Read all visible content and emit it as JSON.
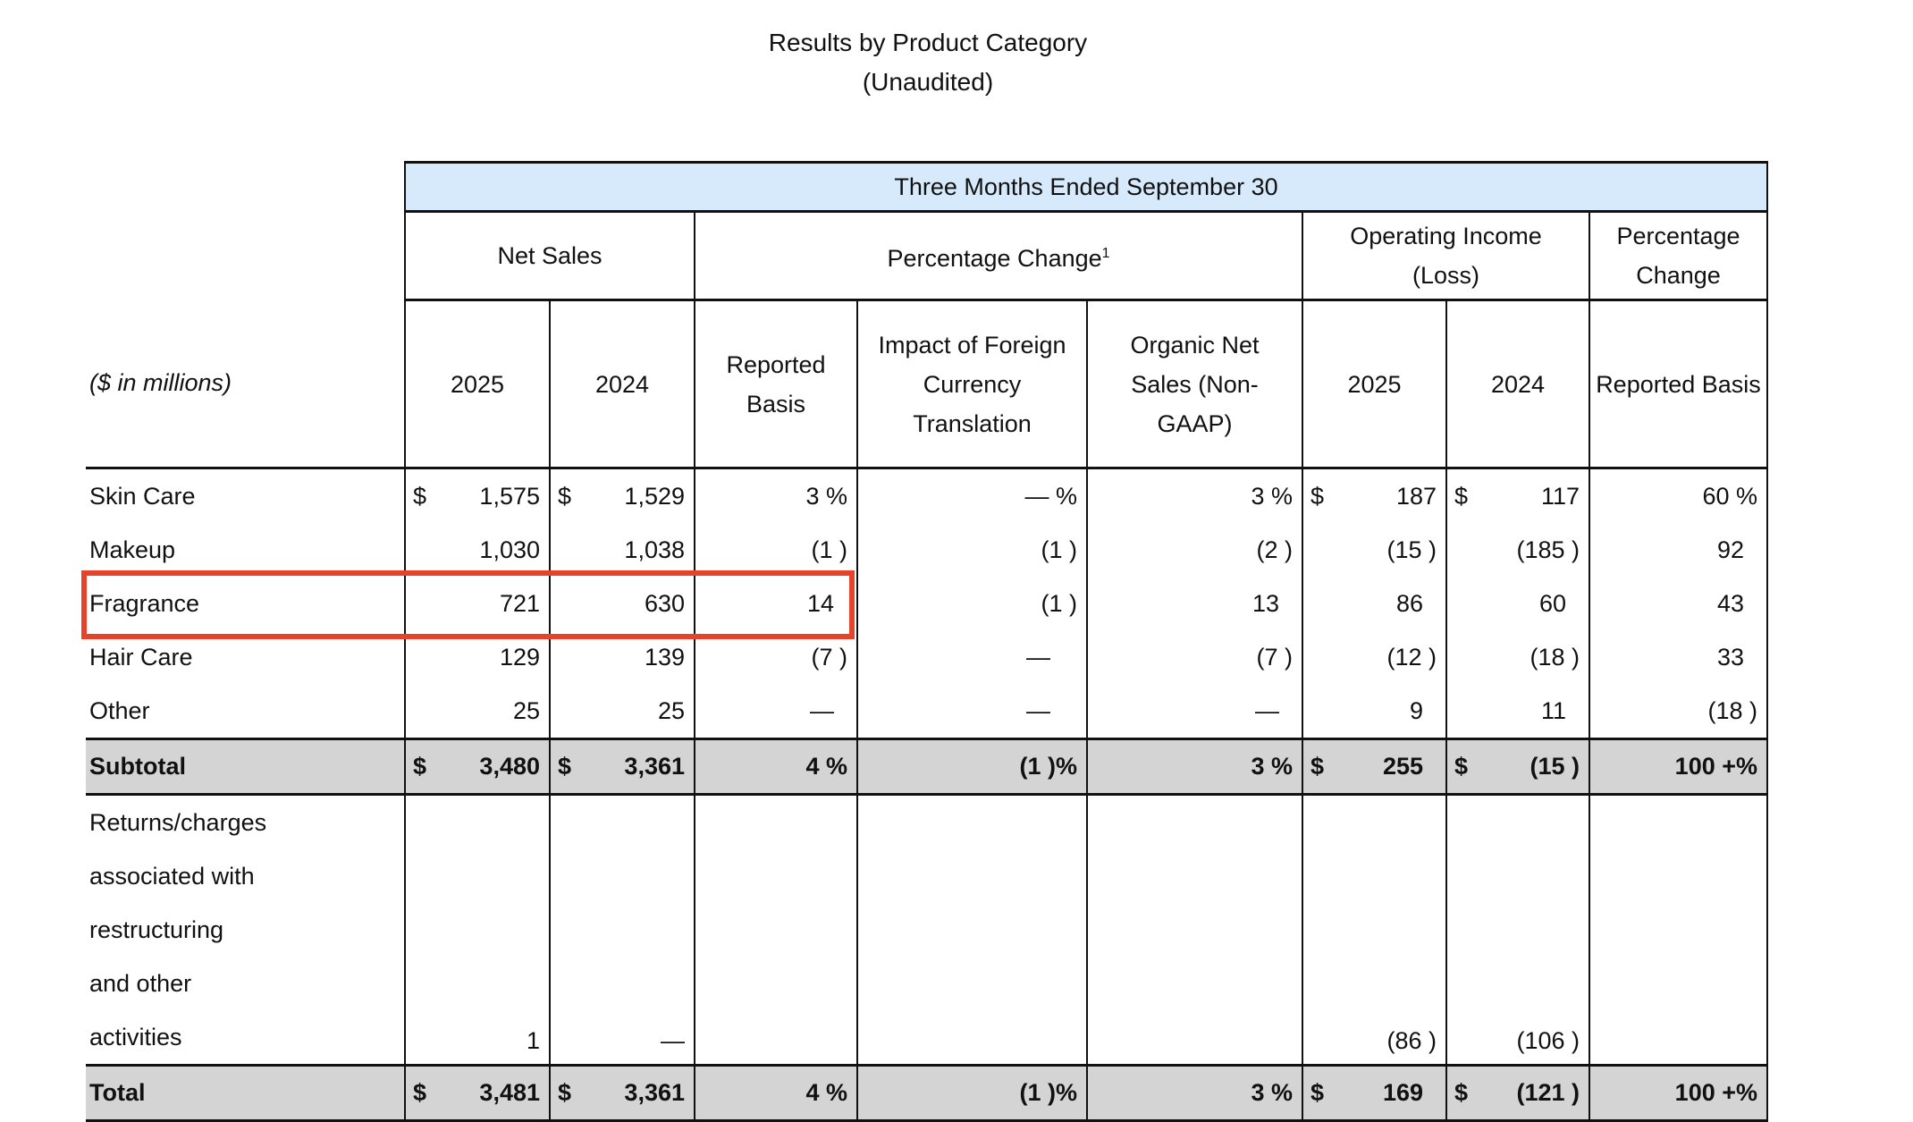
{
  "title": "Results by Product Category",
  "subtitle": "(Unaudited)",
  "header": {
    "period": "Three Months Ended September 30",
    "net_sales": "Net Sales",
    "pct_change": "Percentage Change",
    "pct_change_sup": "1",
    "op_income": "Operating Income (Loss)",
    "pct_change2": "Percentage Change",
    "units": "($ in millions)",
    "cols": [
      "2025",
      "2024",
      "Reported Basis",
      "Impact of Foreign Currency Translation",
      "Organic Net Sales (Non-GAAP)",
      "2025",
      "2024",
      "Reported Basis"
    ]
  },
  "rows": [
    {
      "label": "Skin Care",
      "type": "d",
      "cells": [
        {
          "cur": "$",
          "val": "1,575"
        },
        {
          "cur": "$",
          "val": "1,529"
        },
        {
          "cur": "",
          "val": "3 %"
        },
        {
          "cur": "",
          "val": "— %"
        },
        {
          "cur": "",
          "val": "3 %"
        },
        {
          "cur": "$",
          "val": "187"
        },
        {
          "cur": "$",
          "val": "117"
        },
        {
          "cur": "",
          "val": "60 %"
        }
      ]
    },
    {
      "label": "Makeup",
      "type": "d",
      "cells": [
        {
          "cur": "",
          "val": "1,030"
        },
        {
          "cur": "",
          "val": "1,038"
        },
        {
          "cur": "",
          "val": "(1 )"
        },
        {
          "cur": "",
          "val": "(1 )"
        },
        {
          "cur": "",
          "val": "(2 )"
        },
        {
          "cur": "",
          "val": "(15 )"
        },
        {
          "cur": "",
          "val": "(185 )"
        },
        {
          "cur": "",
          "val": "92  "
        }
      ]
    },
    {
      "label": "Fragrance",
      "type": "d",
      "cells": [
        {
          "cur": "",
          "val": "721"
        },
        {
          "cur": "",
          "val": "630"
        },
        {
          "cur": "",
          "val": "14  "
        },
        {
          "cur": "",
          "val": "(1 )"
        },
        {
          "cur": "",
          "val": "13  "
        },
        {
          "cur": "",
          "val": "86  "
        },
        {
          "cur": "",
          "val": "60  "
        },
        {
          "cur": "",
          "val": "43  "
        }
      ]
    },
    {
      "label": "Hair Care",
      "type": "d",
      "cells": [
        {
          "cur": "",
          "val": "129"
        },
        {
          "cur": "",
          "val": "139"
        },
        {
          "cur": "",
          "val": "(7 )"
        },
        {
          "cur": "",
          "val": "—    "
        },
        {
          "cur": "",
          "val": "(7 )"
        },
        {
          "cur": "",
          "val": "(12 )"
        },
        {
          "cur": "",
          "val": "(18 )"
        },
        {
          "cur": "",
          "val": "33  "
        }
      ]
    },
    {
      "label": "Other",
      "type": "d",
      "cells": [
        {
          "cur": "",
          "val": "25"
        },
        {
          "cur": "",
          "val": "25"
        },
        {
          "cur": "",
          "val": "—  "
        },
        {
          "cur": "",
          "val": "—    "
        },
        {
          "cur": "",
          "val": "—  "
        },
        {
          "cur": "",
          "val": "9  "
        },
        {
          "cur": "",
          "val": "11  "
        },
        {
          "cur": "",
          "val": "(18 )"
        }
      ]
    },
    {
      "label": "Subtotal",
      "type": "sub",
      "cells": [
        {
          "cur": "$",
          "val": "3,480"
        },
        {
          "cur": "$",
          "val": "3,361"
        },
        {
          "cur": "",
          "val": "4 %"
        },
        {
          "cur": "",
          "val": "(1 )%"
        },
        {
          "cur": "",
          "val": "3 %"
        },
        {
          "cur": "$",
          "val": "255  "
        },
        {
          "cur": "$",
          "val": "(15 )"
        },
        {
          "cur": "",
          "val": "100 +%"
        }
      ]
    },
    {
      "label": "Returns/charges associated with restructuring and other activities",
      "type": "ret",
      "cells": [
        {
          "cur": "",
          "val": "1"
        },
        {
          "cur": "",
          "val": "—"
        },
        {
          "cur": "",
          "val": ""
        },
        {
          "cur": "",
          "val": ""
        },
        {
          "cur": "",
          "val": ""
        },
        {
          "cur": "",
          "val": "(86 )"
        },
        {
          "cur": "",
          "val": "(106 )"
        },
        {
          "cur": "",
          "val": ""
        }
      ]
    },
    {
      "label": "Total",
      "type": "tot",
      "cells": [
        {
          "cur": "$",
          "val": "3,481"
        },
        {
          "cur": "$",
          "val": "3,361"
        },
        {
          "cur": "",
          "val": "4 %"
        },
        {
          "cur": "",
          "val": "(1 )%"
        },
        {
          "cur": "",
          "val": "3 %"
        },
        {
          "cur": "$",
          "val": "169  "
        },
        {
          "cur": "$",
          "val": "(121 )"
        },
        {
          "cur": "",
          "val": "100 +%"
        }
      ]
    }
  ],
  "highlight": {
    "row": "Fragrance",
    "color": "#e5432a"
  },
  "colors": {
    "header_bg": "#d6eafb",
    "total_bg": "#d4d4d4"
  }
}
